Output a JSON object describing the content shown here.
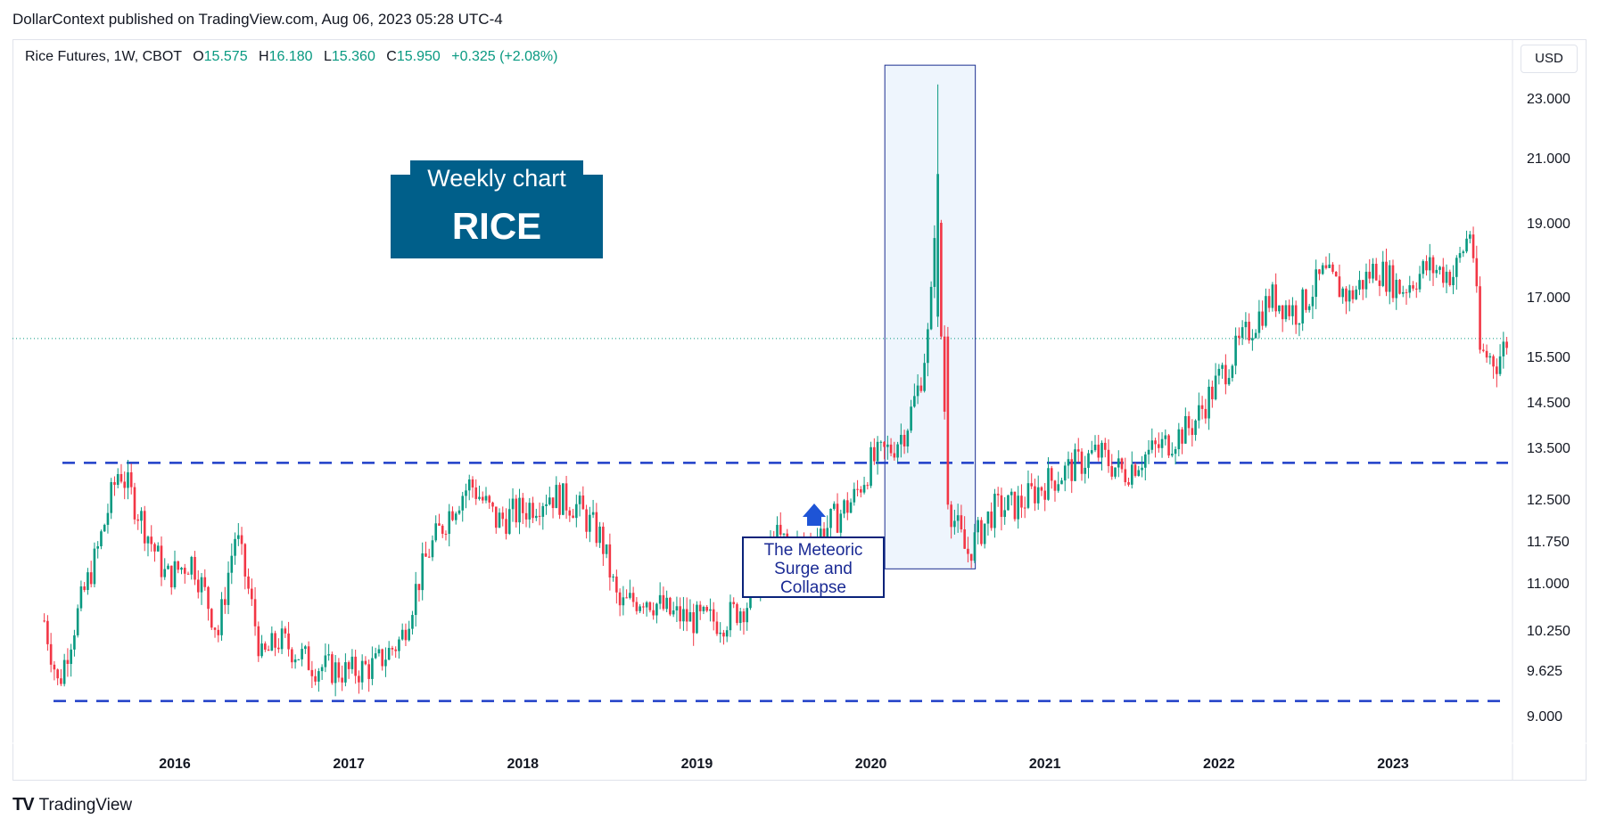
{
  "header": {
    "published": "DollarContext published on TradingView.com, Aug 06, 2023 05:28 UTC-4"
  },
  "legend": {
    "symbol": "Rice Futures, 1W, CBOT",
    "o_label": "O",
    "o_value": "15.575",
    "h_label": "H",
    "h_value": "16.180",
    "l_label": "L",
    "l_value": "15.360",
    "c_label": "C",
    "c_value": "15.950",
    "change": "+0.325 (+2.08%)"
  },
  "currency": "USD",
  "annotations": {
    "title_small": "Weekly chart",
    "title_big": "RICE",
    "callout": [
      "The Meteoric",
      "Surge and",
      "Collapse"
    ]
  },
  "footer": {
    "brand": "TradingView"
  },
  "colors": {
    "up": "#089981",
    "down": "#f23645",
    "line": "#1e3ec8",
    "badge": "#005f8a",
    "highlight_fill": "#eef5fd",
    "highlight_stroke": "#1b2e8f",
    "arrow": "#1e54d6"
  },
  "chart_data": {
    "type": "candlestick",
    "title": "Rice Futures, 1W, CBOT",
    "x_ticks": [
      "2016",
      "2017",
      "2018",
      "2019",
      "2020",
      "2021",
      "2022",
      "2023"
    ],
    "y_ticks": [
      "23.000",
      "21.000",
      "19.000",
      "17.000",
      "15.500",
      "14.500",
      "13.500",
      "12.500",
      "11.750",
      "11.000",
      "10.250",
      "9.625",
      "9.000"
    ],
    "y_scale": "log",
    "ylim": [
      8.6,
      24.5
    ],
    "xlim": [
      2015.22,
      2023.8
    ],
    "last_price": 15.95,
    "support_level": 9.2,
    "resistance_level": 13.2,
    "highlight_range": {
      "x": [
        2020.08,
        2020.6
      ],
      "y": [
        11.25,
        24.1
      ]
    },
    "series": [
      {
        "values": [
          {
            "x": 2015.25,
            "y": 10.4
          },
          {
            "x": 2015.33,
            "y": 9.4
          },
          {
            "x": 2015.42,
            "y": 10.3
          },
          {
            "x": 2015.55,
            "y": 11.5
          },
          {
            "x": 2015.68,
            "y": 13.1
          },
          {
            "x": 2015.8,
            "y": 12.2
          },
          {
            "x": 2015.95,
            "y": 11.1
          },
          {
            "x": 2016.1,
            "y": 11.4
          },
          {
            "x": 2016.25,
            "y": 10.2
          },
          {
            "x": 2016.35,
            "y": 11.9
          },
          {
            "x": 2016.5,
            "y": 9.8
          },
          {
            "x": 2016.6,
            "y": 10.1
          },
          {
            "x": 2016.8,
            "y": 9.7
          },
          {
            "x": 2017.0,
            "y": 9.6
          },
          {
            "x": 2017.15,
            "y": 9.7
          },
          {
            "x": 2017.3,
            "y": 10.1
          },
          {
            "x": 2017.45,
            "y": 11.5
          },
          {
            "x": 2017.6,
            "y": 12.4
          },
          {
            "x": 2017.7,
            "y": 12.8
          },
          {
            "x": 2017.85,
            "y": 12.1
          },
          {
            "x": 2018.0,
            "y": 12.3
          },
          {
            "x": 2018.15,
            "y": 12.6
          },
          {
            "x": 2018.3,
            "y": 12.4
          },
          {
            "x": 2018.45,
            "y": 11.8
          },
          {
            "x": 2018.55,
            "y": 10.6
          },
          {
            "x": 2018.7,
            "y": 10.8
          },
          {
            "x": 2018.85,
            "y": 10.5
          },
          {
            "x": 2019.0,
            "y": 10.4
          },
          {
            "x": 2019.15,
            "y": 10.4
          },
          {
            "x": 2019.3,
            "y": 10.7
          },
          {
            "x": 2019.45,
            "y": 11.8
          },
          {
            "x": 2019.6,
            "y": 11.6
          },
          {
            "x": 2019.75,
            "y": 12.0
          },
          {
            "x": 2019.9,
            "y": 12.5
          },
          {
            "x": 2020.0,
            "y": 13.2
          },
          {
            "x": 2020.12,
            "y": 13.5
          },
          {
            "x": 2020.2,
            "y": 13.9
          },
          {
            "x": 2020.28,
            "y": 14.9
          },
          {
            "x": 2020.34,
            "y": 16.3
          },
          {
            "x": 2020.38,
            "y": 20.5
          },
          {
            "x": 2020.4,
            "y": 16.0
          },
          {
            "x": 2020.45,
            "y": 12.4
          },
          {
            "x": 2020.55,
            "y": 11.5
          },
          {
            "x": 2020.7,
            "y": 12.3
          },
          {
            "x": 2020.85,
            "y": 12.4
          },
          {
            "x": 2021.0,
            "y": 12.8
          },
          {
            "x": 2021.15,
            "y": 13.1
          },
          {
            "x": 2021.3,
            "y": 13.4
          },
          {
            "x": 2021.45,
            "y": 13.0
          },
          {
            "x": 2021.55,
            "y": 13.3
          },
          {
            "x": 2021.7,
            "y": 13.6
          },
          {
            "x": 2021.85,
            "y": 14.0
          },
          {
            "x": 2022.0,
            "y": 15.0
          },
          {
            "x": 2022.15,
            "y": 16.0
          },
          {
            "x": 2022.3,
            "y": 17.0
          },
          {
            "x": 2022.45,
            "y": 16.6
          },
          {
            "x": 2022.6,
            "y": 17.6
          },
          {
            "x": 2022.75,
            "y": 17.0
          },
          {
            "x": 2022.9,
            "y": 17.8
          },
          {
            "x": 2023.05,
            "y": 17.2
          },
          {
            "x": 2023.2,
            "y": 17.8
          },
          {
            "x": 2023.35,
            "y": 17.6
          },
          {
            "x": 2023.45,
            "y": 18.9
          },
          {
            "x": 2023.5,
            "y": 15.6
          },
          {
            "x": 2023.6,
            "y": 15.4
          },
          {
            "x": 2023.66,
            "y": 15.95
          }
        ]
      }
    ]
  }
}
